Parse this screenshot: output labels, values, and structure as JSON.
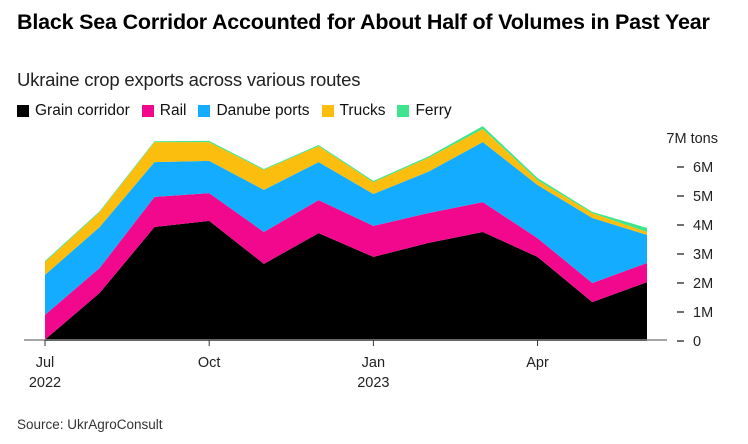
{
  "chart_data": {
    "type": "area",
    "stacked": true,
    "title": "Black Sea Corridor Accounted for About Half of Volumes in Past Year",
    "subtitle": "Ukraine crop exports across various routes",
    "source": "Source: UkrAgroConsult",
    "x": [
      "Jul 2022",
      "Aug 2022",
      "Sep 2022",
      "Oct 2022",
      "Nov 2022",
      "Dec 2022",
      "Jan 2023",
      "Feb 2023",
      "Mar 2023",
      "Apr 2023",
      "May 2023",
      "Jun 2023"
    ],
    "x_tick_labels": [
      {
        "index": 0,
        "label": "Jul",
        "sublabel": "2022"
      },
      {
        "index": 3,
        "label": "Oct",
        "sublabel": ""
      },
      {
        "index": 6,
        "label": "Jan",
        "sublabel": "2023"
      },
      {
        "index": 9,
        "label": "Apr",
        "sublabel": ""
      }
    ],
    "y_unit": "million tons",
    "ylim": [
      0,
      7
    ],
    "y_ticks": [
      {
        "value": 0,
        "label": "0"
      },
      {
        "value": 1,
        "label": "1M"
      },
      {
        "value": 2,
        "label": "2M"
      },
      {
        "value": 3,
        "label": "3M"
      },
      {
        "value": 4,
        "label": "4M"
      },
      {
        "value": 5,
        "label": "5M"
      },
      {
        "value": 6,
        "label": "6M"
      },
      {
        "value": 7,
        "label": "7M tons"
      }
    ],
    "y_axis_side": "right",
    "grid": false,
    "legend_position": "top-left",
    "series": [
      {
        "name": "Grain corridor",
        "color": "#000000",
        "values": [
          0.05,
          1.66,
          3.93,
          4.14,
          2.66,
          3.72,
          2.9,
          3.38,
          3.76,
          2.9,
          1.34,
          2.03
        ]
      },
      {
        "name": "Rail",
        "color": "#f2088c",
        "values": [
          0.85,
          0.86,
          1.04,
          0.96,
          1.1,
          1.14,
          1.07,
          1.03,
          1.03,
          0.65,
          0.66,
          0.66
        ]
      },
      {
        "name": "Danube ports",
        "color": "#14acff",
        "values": [
          1.38,
          1.41,
          1.2,
          1.11,
          1.45,
          1.31,
          1.1,
          1.42,
          2.07,
          1.83,
          2.24,
          0.97
        ]
      },
      {
        "name": "Trucks",
        "color": "#fbbd0e",
        "values": [
          0.44,
          0.52,
          0.69,
          0.65,
          0.69,
          0.55,
          0.41,
          0.48,
          0.45,
          0.17,
          0.17,
          0.1
        ]
      },
      {
        "name": "Ferry",
        "color": "#3fe58e",
        "values": [
          0.04,
          0.03,
          0.03,
          0.04,
          0.03,
          0.04,
          0.04,
          0.05,
          0.1,
          0.07,
          0.04,
          0.14
        ]
      }
    ]
  }
}
